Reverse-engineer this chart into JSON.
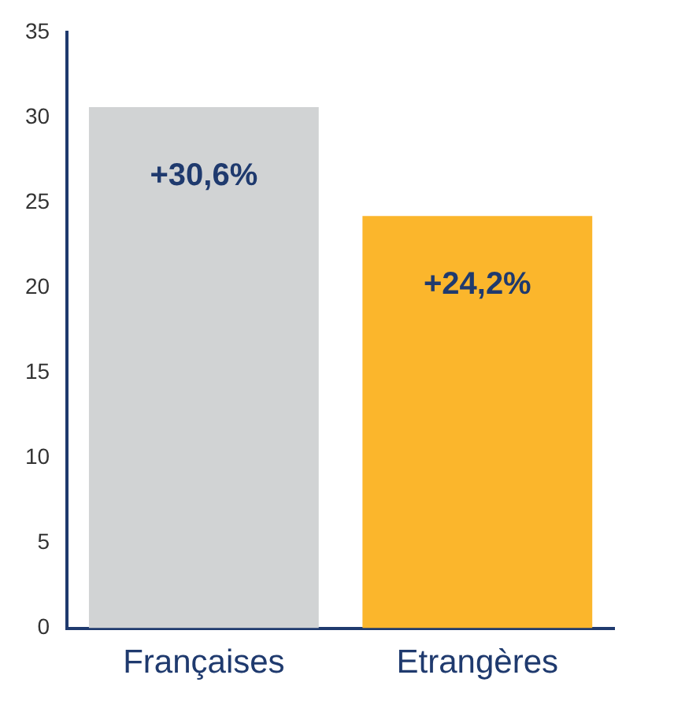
{
  "chart_data": {
    "type": "bar",
    "categories": [
      "Françaises",
      "Etrangères"
    ],
    "values": [
      30.6,
      24.2
    ],
    "colors": [
      "#d1d3d4",
      "#fbb62c"
    ],
    "value_labels": [
      "+30,6%",
      "+24,2%"
    ],
    "ylim": [
      0,
      35
    ],
    "yticks": [
      0,
      5,
      10,
      15,
      20,
      25,
      30,
      35
    ],
    "grid": false,
    "legend": false
  }
}
